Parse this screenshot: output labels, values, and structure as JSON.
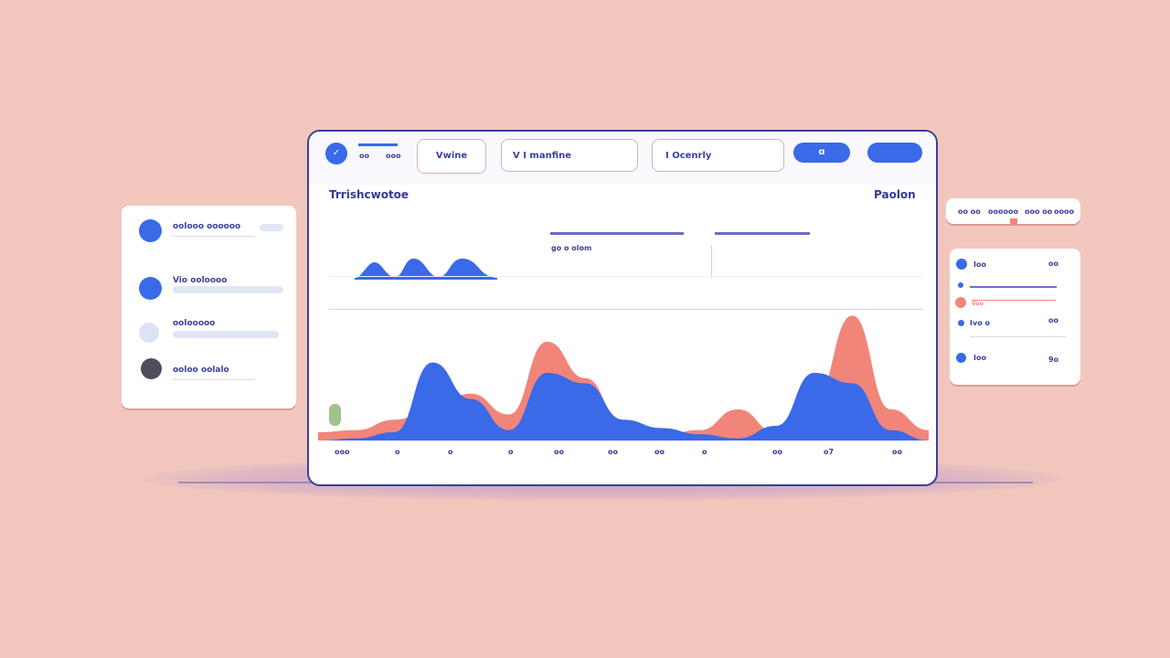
{
  "colors": {
    "background": "#f1c7bd",
    "primary": "#3a6ae8",
    "accent": "#f28579",
    "ink": "#343a96",
    "green": "#9fc38b"
  },
  "toolbar": {
    "brand_small_1": "oo",
    "brand_small_2": "ooo",
    "tab1": "Vwine",
    "tab2": "V I manfine",
    "tab3": "I Ocenrly",
    "action1": "ɑ",
    "action2": ""
  },
  "header": {
    "title": "Trrishcwotoe",
    "right_label": "Paolon"
  },
  "mini_chart": {
    "caption": "go o olom"
  },
  "chart_data": {
    "type": "area",
    "x_ticks": [
      "ooo",
      "o",
      "o",
      "o",
      "oo",
      "oo",
      "oo",
      "o",
      "oo",
      "o7",
      "oo"
    ],
    "series": [
      {
        "color": "#3a6ae8",
        "values": [
          0,
          2,
          8,
          75,
          40,
          10,
          65,
          55,
          20,
          12,
          6,
          2,
          14,
          65,
          55,
          10,
          0
        ]
      },
      {
        "color": "#f28579",
        "values": [
          8,
          10,
          20,
          30,
          45,
          25,
          95,
          60,
          15,
          5,
          10,
          30,
          8,
          40,
          120,
          30,
          10
        ]
      }
    ]
  },
  "left_panel": {
    "items": [
      {
        "label": "oolooo oooooo",
        "color": "#3a6ae8"
      },
      {
        "label": "Vio ooloooo",
        "color": "#3a6ae8"
      },
      {
        "label": "oolooooo",
        "color": "#dde3f7"
      },
      {
        "label": "ooloo oolalo",
        "color": "#4e4d5c"
      }
    ]
  },
  "right_top": {
    "labels": [
      "oo oo",
      "oooooo",
      "ooo oo",
      "oooo"
    ]
  },
  "right_list": {
    "rows": [
      {
        "label": "Ioo",
        "value": "oo",
        "color": "#3a6ae8"
      },
      {
        "label": "",
        "value": "",
        "color": "#3a6ae8"
      },
      {
        "label": "Vuo",
        "value": "",
        "color": "#f28579"
      },
      {
        "label": "Ivo o",
        "value": "oo",
        "color": "#3a6ae8"
      },
      {
        "label": "Ioo",
        "value": "9o",
        "color": "#3a6ae8"
      }
    ]
  }
}
